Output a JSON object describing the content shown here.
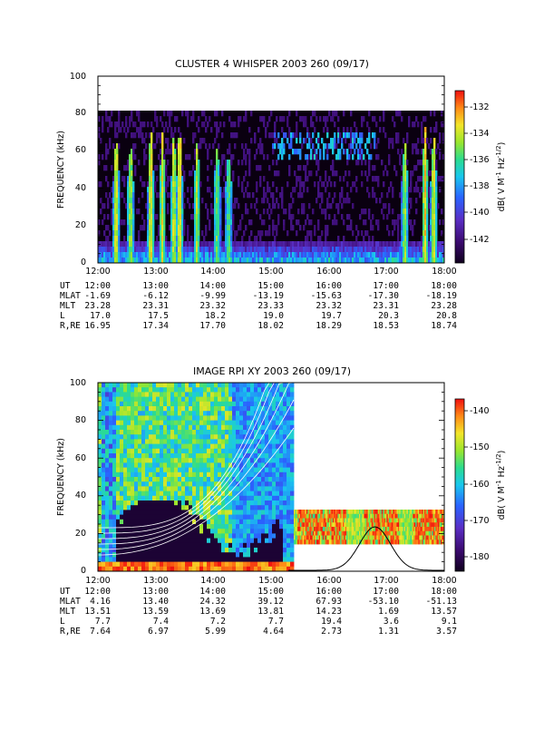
{
  "colors": {
    "background": "#ffffff",
    "axis": "#000000",
    "colormap": [
      "#10001e",
      "#3b0a6e",
      "#5a2ec4",
      "#2a63ff",
      "#19c7ee",
      "#2bdc8f",
      "#9ae62d",
      "#f3e52a",
      "#ff8a16",
      "#f01010"
    ],
    "model_curve": "#ffffff",
    "trace_curve": "#000000"
  },
  "charts": [
    {
      "title": "CLUSTER 4 WHISPER 2003 260 (09/17)",
      "ylabel": "FREQUENCY (kHz)",
      "colorbar_label": "dB( V M",
      "colorbar_sup1": "-1",
      "colorbar_mid": " Hz",
      "colorbar_sup2": "-1/2",
      "colorbar_end": ")",
      "yticks": [
        "0",
        "20",
        "40",
        "60",
        "80",
        "100"
      ],
      "xticks": [
        "12:00",
        "13:00",
        "14:00",
        "15:00",
        "16:00",
        "17:00",
        "18:00"
      ],
      "cticks": [
        "-132",
        "-134",
        "-136",
        "-138",
        "-140",
        "-142"
      ],
      "ephemeris": [
        {
          "label": "UT",
          "values": [
            "12:00",
            "13:00",
            "14:00",
            "15:00",
            "16:00",
            "17:00",
            "18:00"
          ]
        },
        {
          "label": "MLAT",
          "values": [
            "-1.69",
            "-6.12",
            "-9.99",
            "-13.19",
            "-15.63",
            "-17.30",
            "-18.19"
          ]
        },
        {
          "label": "MLT",
          "values": [
            "23.28",
            "23.31",
            "23.32",
            "23.33",
            "23.32",
            "23.31",
            "23.28"
          ]
        },
        {
          "label": "L",
          "values": [
            "17.0",
            "17.5",
            "18.2",
            "19.0",
            "19.7",
            "20.3",
            "20.8"
          ]
        },
        {
          "label": "R,RE",
          "values": [
            "16.95",
            "17.34",
            "17.70",
            "18.02",
            "18.29",
            "18.53",
            "18.74"
          ]
        }
      ]
    },
    {
      "title": "IMAGE RPI XY 2003 260 (09/17)",
      "ylabel": "FREQUENCY (kHz)",
      "colorbar_label": "dB( V M",
      "colorbar_sup1": "-1",
      "colorbar_mid": " Hz",
      "colorbar_sup2": "-1/2",
      "colorbar_end": ")",
      "yticks": [
        "0",
        "20",
        "40",
        "60",
        "80",
        "100"
      ],
      "xticks": [
        "12:00",
        "13:00",
        "14:00",
        "15:00",
        "16:00",
        "17:00",
        "18:00"
      ],
      "cticks": [
        "-140",
        "-150",
        "-160",
        "-170",
        "-180"
      ],
      "ephemeris": [
        {
          "label": "UT",
          "values": [
            "12:00",
            "13:00",
            "14:00",
            "15:00",
            "16:00",
            "17:00",
            "18:00"
          ]
        },
        {
          "label": "MLAT",
          "values": [
            "4.16",
            "13.40",
            "24.32",
            "39.12",
            "67.93",
            "-53.10",
            "-51.13"
          ]
        },
        {
          "label": "MLT",
          "values": [
            "13.51",
            "13.59",
            "13.69",
            "13.81",
            "14.23",
            "1.69",
            "13.57"
          ]
        },
        {
          "label": "L",
          "values": [
            "7.7",
            "7.4",
            "7.2",
            "7.7",
            "19.4",
            "3.6",
            "9.1"
          ]
        },
        {
          "label": "R,RE",
          "values": [
            "7.64",
            "6.97",
            "5.99",
            "4.64",
            "2.73",
            "1.31",
            "3.57"
          ]
        }
      ]
    }
  ],
  "chart_data": [
    {
      "type": "heatmap",
      "title": "CLUSTER 4 WHISPER 2003 260 (09/17)",
      "xlabel": "",
      "ylabel": "FREQUENCY (kHz)",
      "x_range": [
        "12:00",
        "18:00"
      ],
      "ylim": [
        0,
        100
      ],
      "data_frequency_range_khz": [
        0,
        80
      ],
      "colorbar_range_db": [
        -144,
        -131
      ],
      "colorbar_label": "dB( V M-1 Hz-1/2)"
    },
    {
      "type": "heatmap",
      "title": "IMAGE RPI XY 2003 260 (09/17)",
      "xlabel": "",
      "ylabel": "FREQUENCY (kHz)",
      "x_range": [
        "12:00",
        "18:00"
      ],
      "ylim": [
        0,
        100
      ],
      "colorbar_range_db": [
        -185,
        -136
      ],
      "colorbar_label": "dB( V M-1 Hz-1/2)",
      "segments": [
        {
          "time_range": [
            "12:00",
            "15:25"
          ],
          "frequency_range_khz": [
            0,
            100
          ]
        },
        {
          "time_range": [
            "15:25",
            "18:00"
          ],
          "frequency_range_khz": [
            17,
            32
          ]
        }
      ]
    }
  ]
}
